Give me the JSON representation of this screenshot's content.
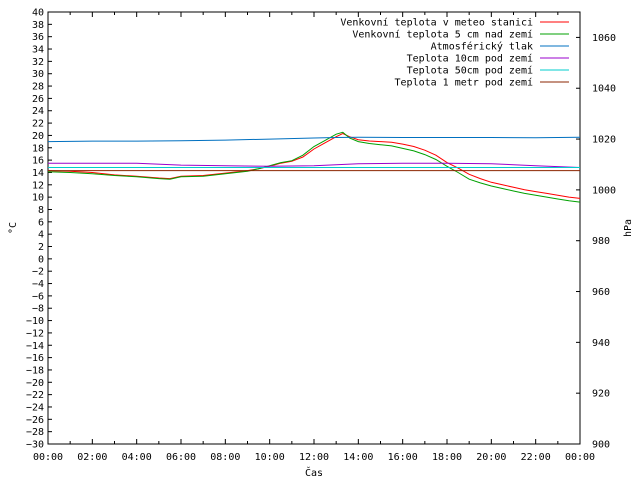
{
  "chart_data": {
    "type": "line",
    "xlabel": "Čas",
    "ylabel": "°C",
    "y2label": "hPa",
    "ylim": [
      -30,
      40
    ],
    "y2lim": [
      900,
      1070
    ],
    "xlim": [
      0,
      24
    ],
    "grid": false,
    "legend_position": "top-right",
    "x_tick_labels": [
      "00:00",
      "02:00",
      "04:00",
      "06:00",
      "08:00",
      "10:00",
      "12:00",
      "14:00",
      "16:00",
      "18:00",
      "20:00",
      "22:00",
      "00:00"
    ],
    "y_tick_labels": [
      "40",
      "38",
      "36",
      "34",
      "32",
      "30",
      "28",
      "26",
      "24",
      "22",
      "20",
      "18",
      "16",
      "14",
      "12",
      "10",
      "8",
      "6",
      "4",
      "2",
      "0",
      "−2",
      "−4",
      "−6",
      "−8",
      "−10",
      "−12",
      "−14",
      "−16",
      "−18",
      "−20",
      "−22",
      "−24",
      "−26",
      "−28",
      "−30"
    ],
    "y2_tick_labels": [
      "1060",
      "1040",
      "1020",
      "1000",
      "980",
      "960",
      "940",
      "920",
      "900"
    ],
    "series": [
      {
        "name": "Venkovní teplota v meteo stanici",
        "color": "#ff0000",
        "axis": "y",
        "x": [
          0,
          1,
          2,
          3,
          4,
          5,
          5.5,
          6,
          7,
          8,
          9,
          9.5,
          10,
          10.5,
          11,
          11.5,
          12,
          12.5,
          13,
          13.3,
          13.6,
          14,
          14.5,
          15,
          15.5,
          16,
          16.5,
          17,
          17.5,
          18,
          18.5,
          19,
          19.5,
          20,
          20.5,
          21,
          21.5,
          22,
          22.5,
          23,
          23.5,
          24
        ],
        "y": [
          14.3,
          14.2,
          14.0,
          13.6,
          13.4,
          13.1,
          13.0,
          13.4,
          13.5,
          13.9,
          14.3,
          14.6,
          15.0,
          15.5,
          15.8,
          16.5,
          17.8,
          18.8,
          19.8,
          20.3,
          19.8,
          19.3,
          19.1,
          19.0,
          18.9,
          18.6,
          18.2,
          17.6,
          16.8,
          15.6,
          14.7,
          13.7,
          13.0,
          12.4,
          12.0,
          11.6,
          11.2,
          10.9,
          10.6,
          10.3,
          10.0,
          9.8
        ]
      },
      {
        "name": "Venkovní teplota 5 cm nad zemí",
        "color": "#00a000",
        "axis": "y",
        "x": [
          0,
          1,
          2,
          3,
          4,
          5,
          5.5,
          6,
          7,
          8,
          9,
          9.5,
          10,
          10.5,
          11,
          11.5,
          12,
          12.5,
          13,
          13.3,
          13.6,
          14,
          14.5,
          15,
          15.5,
          16,
          16.5,
          17,
          17.5,
          18,
          18.5,
          19,
          19.5,
          20,
          20.5,
          21,
          21.5,
          22,
          22.5,
          23,
          23.5,
          24
        ],
        "y": [
          14.1,
          14.0,
          13.8,
          13.5,
          13.3,
          13.0,
          12.9,
          13.3,
          13.4,
          13.8,
          14.2,
          14.6,
          15.1,
          15.6,
          15.9,
          16.8,
          18.2,
          19.2,
          20.2,
          20.5,
          19.6,
          19.0,
          18.7,
          18.5,
          18.3,
          17.9,
          17.5,
          16.9,
          16.1,
          15.0,
          14.0,
          12.9,
          12.3,
          11.8,
          11.4,
          11.0,
          10.6,
          10.3,
          10.0,
          9.7,
          9.4,
          9.2
        ]
      },
      {
        "name": "Atmosférický tlak",
        "color": "#0070c0",
        "axis": "y2",
        "x": [
          0,
          2,
          4,
          6,
          8,
          10,
          12,
          13,
          14,
          16,
          18,
          20,
          22,
          24
        ],
        "y": [
          1019.0,
          1019.2,
          1019.2,
          1019.3,
          1019.6,
          1020.0,
          1020.4,
          1020.6,
          1020.7,
          1020.6,
          1020.6,
          1020.6,
          1020.5,
          1020.7
        ]
      },
      {
        "name": "Teplota 10cm pod zemí",
        "color": "#9900cc",
        "axis": "y",
        "x": [
          0,
          4,
          6,
          8,
          10,
          12,
          14,
          16,
          18,
          20,
          22,
          24
        ],
        "y": [
          15.5,
          15.5,
          15.2,
          15.1,
          15.0,
          15.1,
          15.4,
          15.5,
          15.5,
          15.4,
          15.1,
          14.8
        ]
      },
      {
        "name": "Teplota 50cm pod zemí",
        "color": "#00cccc",
        "axis": "y",
        "x": [
          0,
          6,
          12,
          18,
          24
        ],
        "y": [
          14.8,
          14.8,
          14.8,
          14.8,
          14.8
        ]
      },
      {
        "name": "Teplota 1 metr pod zemí",
        "color": "#8b2500",
        "axis": "y",
        "x": [
          0,
          6,
          12,
          18,
          24
        ],
        "y": [
          14.3,
          14.3,
          14.3,
          14.3,
          14.3
        ]
      }
    ]
  }
}
